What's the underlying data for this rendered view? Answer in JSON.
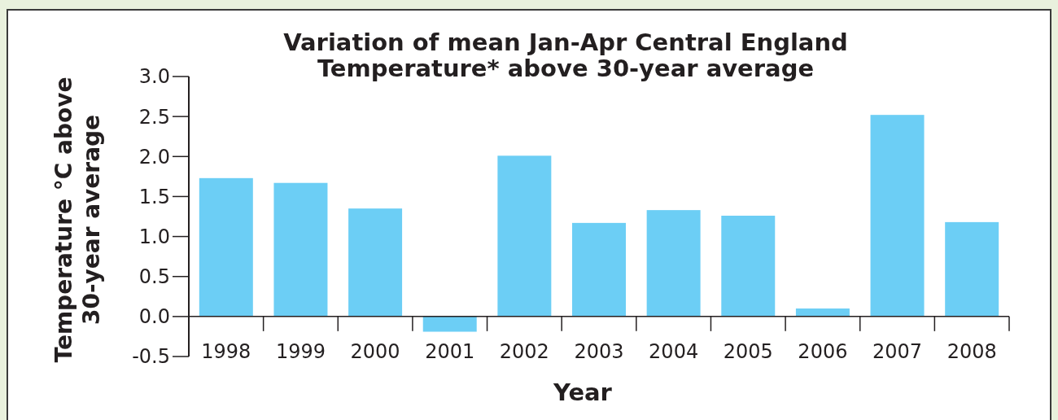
{
  "chart_data": {
    "type": "bar",
    "title": "Variation of mean Jan-Apr Central England\nTemperature* above 30-year average",
    "xlabel": "Year",
    "ylabel": "Temperature °C above\n30-year average",
    "categories": [
      "1998",
      "1999",
      "2000",
      "2001",
      "2002",
      "2003",
      "2004",
      "2005",
      "2006",
      "2007",
      "2008"
    ],
    "values": [
      1.73,
      1.67,
      1.35,
      -0.19,
      2.01,
      1.17,
      1.33,
      1.26,
      0.1,
      2.52,
      1.18
    ],
    "color": "#6ccef5",
    "ylim": [
      -0.5,
      3.0
    ],
    "yticks": [
      {
        "value": -0.5,
        "label": "-0.5"
      },
      {
        "value": 0.0,
        "label": "0.0"
      },
      {
        "value": 0.5,
        "label": "0.5"
      },
      {
        "value": 1.0,
        "label": "1.0"
      },
      {
        "value": 1.5,
        "label": "1.5"
      },
      {
        "value": 2.0,
        "label": "2.0"
      },
      {
        "value": 2.5,
        "label": "2.5"
      },
      {
        "value": 3.0,
        "label": "3.0"
      }
    ],
    "grid": false
  }
}
